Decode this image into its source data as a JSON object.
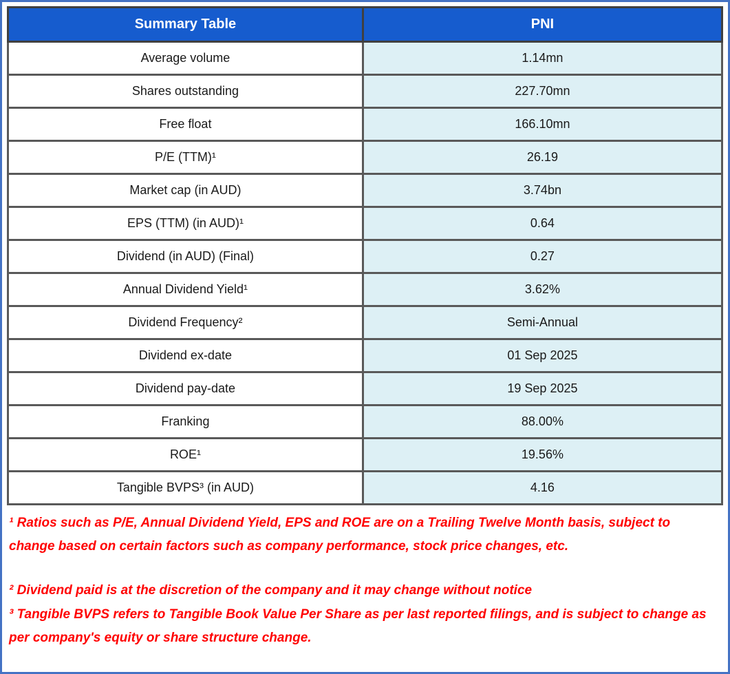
{
  "table": {
    "header": {
      "left": "Summary Table",
      "right": "PNI"
    },
    "rows": [
      {
        "label": "Average volume",
        "value": "1.14mn"
      },
      {
        "label": "Shares outstanding",
        "value": "227.70mn"
      },
      {
        "label": "Free float",
        "value": "166.10mn"
      },
      {
        "label": "P/E (TTM)¹",
        "value": "26.19"
      },
      {
        "label": "Market cap (in AUD)",
        "value": "3.74bn"
      },
      {
        "label": "EPS (TTM) (in AUD)¹",
        "value": "0.64"
      },
      {
        "label": "Dividend (in AUD) (Final)",
        "value": "0.27"
      },
      {
        "label": "Annual Dividend Yield¹",
        "value": "3.62%"
      },
      {
        "label": "Dividend Frequency²",
        "value": "Semi-Annual"
      },
      {
        "label": "Dividend ex-date",
        "value": "01 Sep 2025"
      },
      {
        "label": "Dividend pay-date",
        "value": "19 Sep 2025"
      },
      {
        "label": "Franking",
        "value": "88.00%"
      },
      {
        "label": "ROE¹",
        "value": "19.56%"
      },
      {
        "label": "Tangible BVPS³ (in AUD)",
        "value": "4.16"
      }
    ]
  },
  "footnotes": [
    "¹ Ratios such as P/E, Annual Dividend Yield, EPS and ROE are on a Trailing Twelve Month basis, subject to change based on certain factors such as company performance, stock price changes, etc.",
    "² Dividend paid is at the discretion of the company and it may change without notice",
    "³ Tangible BVPS refers to Tangible Book Value Per Share as per last reported filings, and is subject to change as per company's equity or share structure change."
  ],
  "colors": {
    "header_blue": "#165CCE",
    "value_cell_bg": "#DDF0F5",
    "inner_border": "#595959",
    "table_outline": "#404040",
    "frame_blue": "#4472C4",
    "footnote_red": "#FF0000",
    "text": "#1A1A1A"
  },
  "chart_data": {
    "type": "table",
    "title": "Summary Table",
    "columns": [
      "Summary Table",
      "PNI"
    ],
    "rows": [
      [
        "Average volume",
        "1.14mn"
      ],
      [
        "Shares outstanding",
        "227.70mn"
      ],
      [
        "Free float",
        "166.10mn"
      ],
      [
        "P/E (TTM)¹",
        "26.19"
      ],
      [
        "Market cap (in AUD)",
        "3.74bn"
      ],
      [
        "EPS (TTM) (in AUD)¹",
        "0.64"
      ],
      [
        "Dividend (in AUD) (Final)",
        "0.27"
      ],
      [
        "Annual Dividend Yield¹",
        "3.62%"
      ],
      [
        "Dividend Frequency²",
        "Semi-Annual"
      ],
      [
        "Dividend ex-date",
        "01 Sep 2025"
      ],
      [
        "Dividend pay-date",
        "19 Sep 2025"
      ],
      [
        "Franking",
        "88.00%"
      ],
      [
        "ROE¹",
        "19.56%"
      ],
      [
        "Tangible BVPS³ (in AUD)",
        "4.16"
      ]
    ],
    "footnotes": [
      "¹ Ratios such as P/E, Annual Dividend Yield, EPS and ROE are on a Trailing Twelve Month basis, subject to change based on certain factors such as company performance, stock price changes, etc.",
      "² Dividend paid is at the discretion of the company and it may change without notice",
      "³ Tangible BVPS refers to Tangible Book Value Per Share as per last reported filings, and is subject to change as per company's equity or share structure change."
    ]
  }
}
